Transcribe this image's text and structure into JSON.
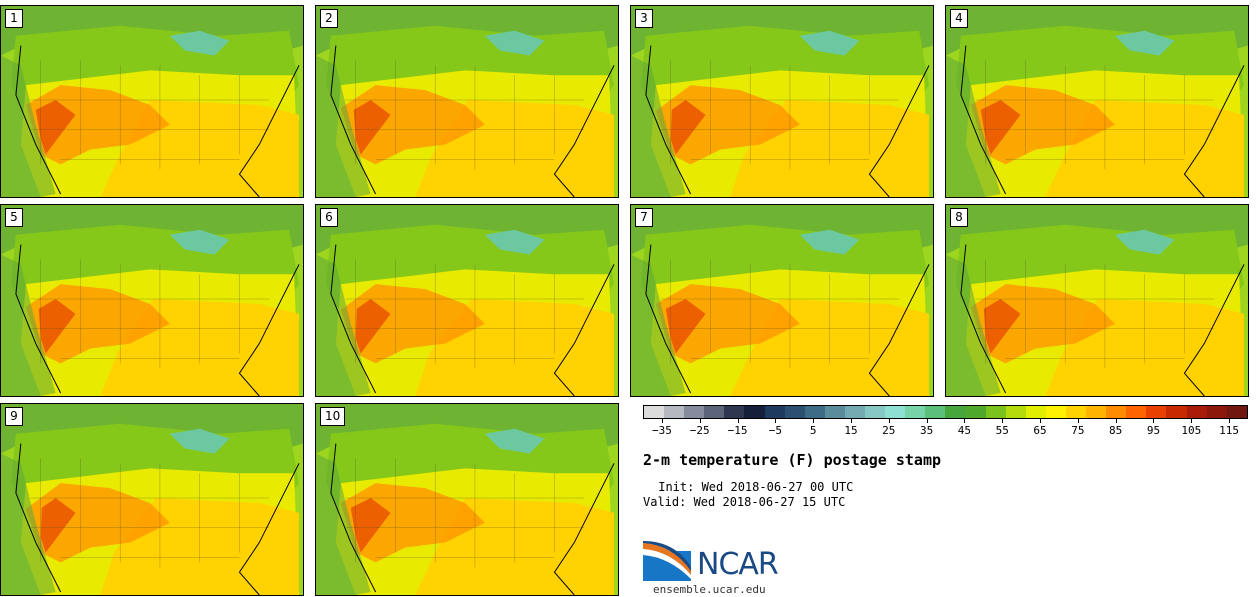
{
  "title": "2-m temperature (F) postage stamp",
  "init": " Init: Wed 2018-06-27 00 UTC",
  "valid": "Valid: Wed 2018-06-27 15 UTC",
  "logo": {
    "name": "NCAR",
    "url": "ensemble.ucar.edu"
  },
  "members": [
    "1",
    "2",
    "3",
    "4",
    "5",
    "6",
    "7",
    "8",
    "9",
    "10"
  ],
  "colorbar": {
    "colors": [
      "#dcdcdc",
      "#b4b8c0",
      "#868c9e",
      "#5c647a",
      "#2e3650",
      "#14203a",
      "#1e3a5c",
      "#2d5070",
      "#3d6a84",
      "#5a8c9c",
      "#74aab2",
      "#86c8c4",
      "#8ee0d2",
      "#76d4a8",
      "#5cc07a",
      "#46a63c",
      "#4ea82a",
      "#7cc21c",
      "#b4dc0c",
      "#e2ee00",
      "#fff200",
      "#ffd200",
      "#ffb400",
      "#ff8c00",
      "#ff6400",
      "#e84000",
      "#c82a00",
      "#a81c08",
      "#8c180c",
      "#701810"
    ],
    "tick_values": [
      -35,
      -25,
      -15,
      -5,
      5,
      15,
      25,
      35,
      45,
      55,
      65,
      75,
      85,
      95,
      105,
      115
    ],
    "tick_labels": [
      "−35",
      "−25",
      "−15",
      "−5",
      "5",
      "15",
      "25",
      "35",
      "45",
      "55",
      "65",
      "75",
      "85",
      "95",
      "105",
      "115"
    ],
    "min": -40,
    "max": 120
  },
  "map_colors": {
    "ocean": "#9ed61f",
    "cool": "#5ea83a",
    "north": "#86c81a",
    "mid": "#e8ea00",
    "warm": "#ffd200",
    "hot": "#ff9a00",
    "hottest": "#e84800",
    "lake": "#6cc8a0"
  }
}
